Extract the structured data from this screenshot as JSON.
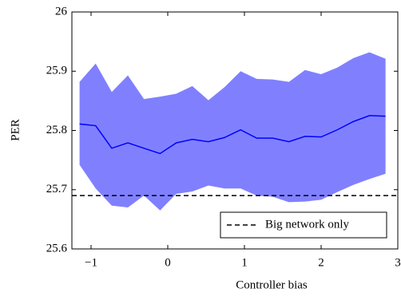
{
  "chart_data": {
    "type": "band-line",
    "xlabel": "Controller bias",
    "ylabel": "PER",
    "x": [
      -1.15,
      -0.94,
      -0.73,
      -0.52,
      -0.31,
      -0.1,
      0.11,
      0.32,
      0.53,
      0.74,
      0.95,
      1.16,
      1.37,
      1.58,
      1.79,
      2.0,
      2.21,
      2.42,
      2.63,
      2.84
    ],
    "mean": {
      "color": "#0000ff",
      "values": [
        25.811,
        25.808,
        25.77,
        25.779,
        25.77,
        25.761,
        25.779,
        25.785,
        25.781,
        25.788,
        25.801,
        25.787,
        25.787,
        25.781,
        25.79,
        25.789,
        25.801,
        25.815,
        25.825,
        25.824
      ]
    },
    "band": {
      "color": "#8080ff",
      "upper": [
        25.882,
        25.913,
        25.865,
        25.893,
        25.853,
        25.857,
        25.862,
        25.875,
        25.851,
        25.873,
        25.9,
        25.887,
        25.886,
        25.882,
        25.902,
        25.895,
        25.906,
        25.922,
        25.932,
        25.921
      ],
      "lower": [
        25.742,
        25.702,
        25.673,
        25.67,
        25.69,
        25.665,
        25.693,
        25.697,
        25.707,
        25.702,
        25.702,
        25.69,
        25.688,
        25.679,
        25.68,
        25.683,
        25.696,
        25.708,
        25.718,
        25.727
      ]
    },
    "reference": {
      "name": "Big network only",
      "value": 25.69,
      "color": "#000000",
      "dashed": true
    },
    "xlim": [
      -1.25,
      3
    ],
    "ylim": [
      25.6,
      26
    ],
    "xticks": [
      {
        "value": -1,
        "label": "−1"
      },
      0,
      1,
      2,
      3
    ],
    "yticks": [
      25.6,
      25.7,
      25.8,
      25.9,
      26
    ],
    "legend": "lower-right"
  }
}
